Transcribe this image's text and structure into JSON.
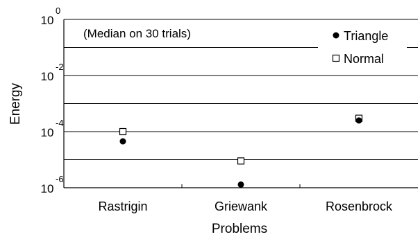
{
  "chart_data": {
    "type": "scatter",
    "categories": [
      "Rastrigin",
      "Griewank",
      "Rosenbrock"
    ],
    "series": [
      {
        "name": "Triangle",
        "marker": "filled-circle",
        "values": [
          4.5e-05,
          1.3e-06,
          0.00025
        ]
      },
      {
        "name": "Normal",
        "marker": "open-square",
        "values": [
          0.0001,
          9e-06,
          0.0003
        ]
      }
    ],
    "annotation": "(Median on 30 trials)",
    "xlabel": "Problems",
    "ylabel": "Energy",
    "y_scale": "log",
    "ylim": [
      1e-06,
      1
    ],
    "y_ticks": [
      {
        "base": "10",
        "exp": "0",
        "value": 1
      },
      {
        "base": "10",
        "exp": "-2",
        "value": 0.01
      },
      {
        "base": "10",
        "exp": "-4",
        "value": 0.0001
      },
      {
        "base": "10",
        "exp": "-6",
        "value": 1e-06
      }
    ],
    "grid": true,
    "legend_position": "top-right",
    "colors": {
      "marker": "#000000",
      "grid": "#000000",
      "background": "#ffffff"
    }
  }
}
